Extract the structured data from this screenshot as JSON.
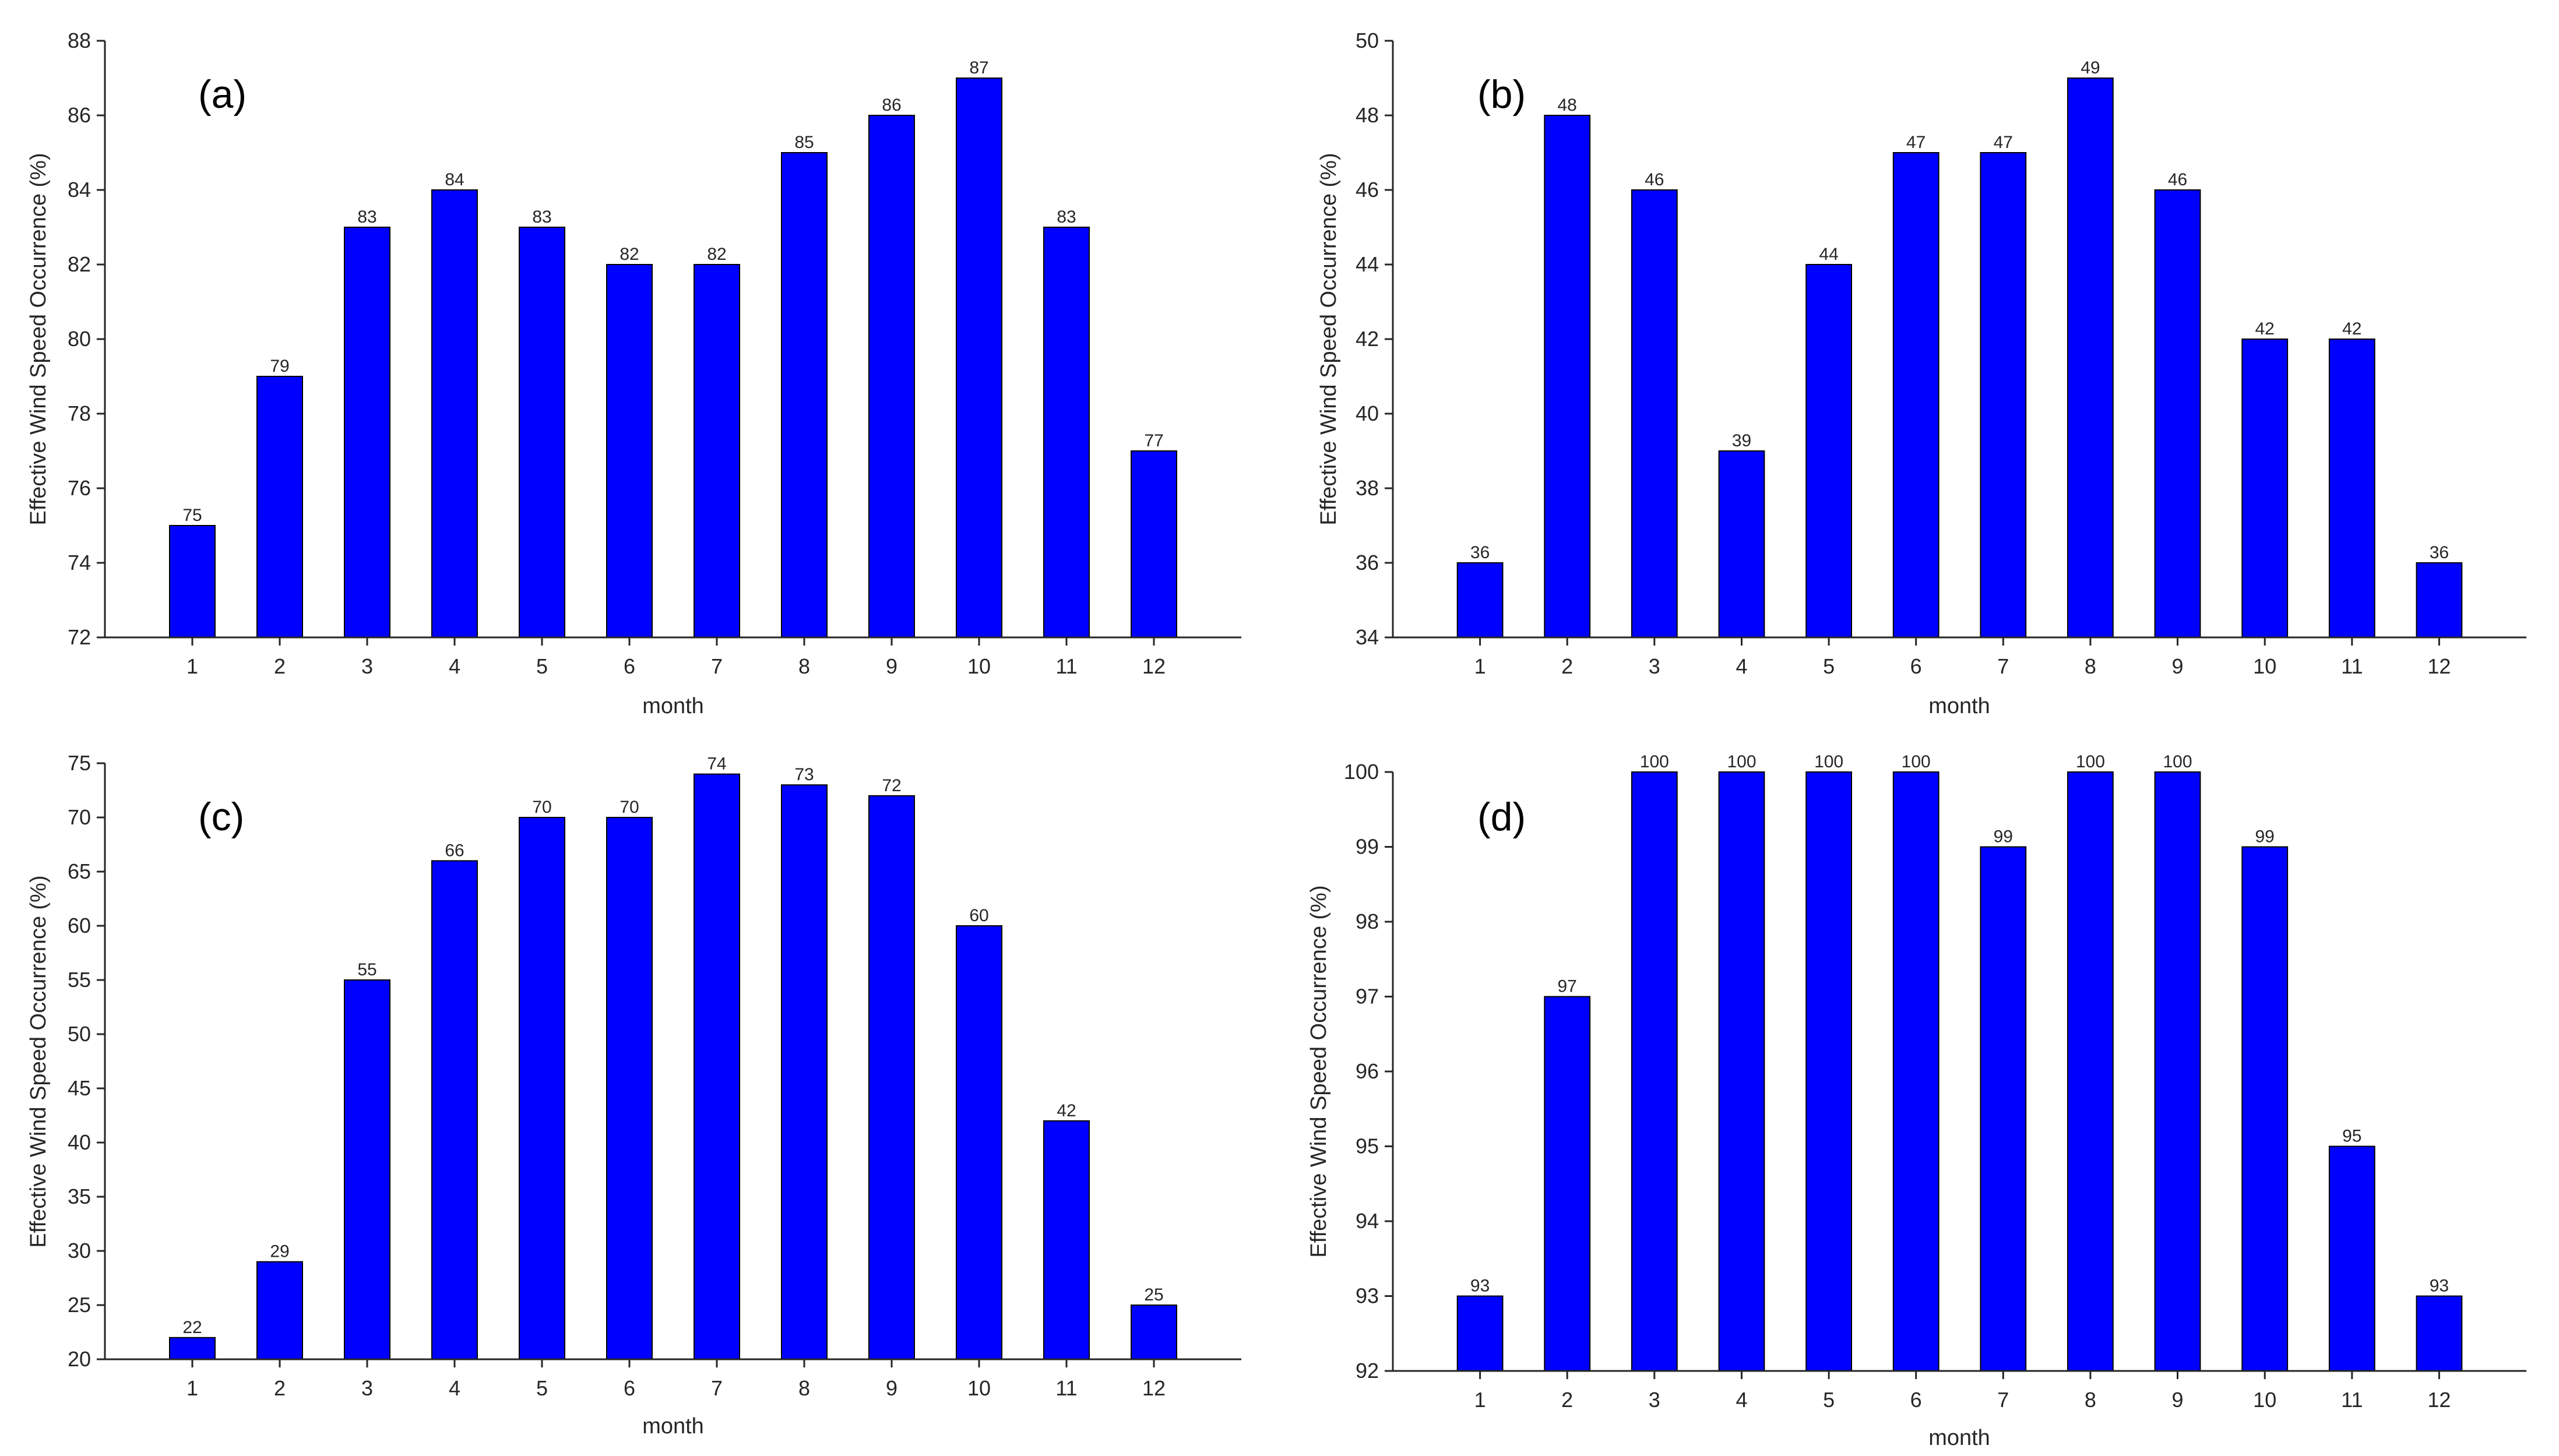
{
  "figure": {
    "bar_color": "#0000FF",
    "axis_color": "#262626",
    "background": "#FFFFFF"
  },
  "chart_data": [
    {
      "type": "bar",
      "panel_label": "(a)",
      "xlabel": "month",
      "ylabel": "Effective Wind Speed Occurrence (%)",
      "categories": [
        "1",
        "2",
        "3",
        "4",
        "5",
        "6",
        "7",
        "8",
        "9",
        "10",
        "11",
        "12"
      ],
      "values": [
        75,
        79,
        83,
        84,
        83,
        82,
        82,
        85,
        86,
        87,
        83,
        77
      ],
      "ylim": [
        72,
        88
      ],
      "yticks": [
        72,
        74,
        76,
        78,
        80,
        82,
        84,
        86,
        88
      ],
      "grid": false
    },
    {
      "type": "bar",
      "panel_label": "(b)",
      "xlabel": "month",
      "ylabel": "Effective Wind Speed Occurrence (%)",
      "categories": [
        "1",
        "2",
        "3",
        "4",
        "5",
        "6",
        "7",
        "8",
        "9",
        "10",
        "11",
        "12"
      ],
      "values": [
        36,
        48,
        46,
        39,
        44,
        47,
        47,
        49,
        46,
        42,
        42,
        36
      ],
      "ylim": [
        34,
        50
      ],
      "yticks": [
        34,
        36,
        38,
        40,
        42,
        44,
        46,
        48,
        50
      ],
      "grid": false
    },
    {
      "type": "bar",
      "panel_label": "(c)",
      "xlabel": "month",
      "ylabel": "Effective Wind Speed Occurrence (%)",
      "categories": [
        "1",
        "2",
        "3",
        "4",
        "5",
        "6",
        "7",
        "8",
        "9",
        "10",
        "11",
        "12"
      ],
      "values": [
        22,
        29,
        55,
        66,
        70,
        70,
        74,
        73,
        72,
        60,
        42,
        25
      ],
      "ylim": [
        20,
        75
      ],
      "yticks": [
        20,
        25,
        30,
        35,
        40,
        45,
        50,
        55,
        60,
        65,
        70,
        75
      ],
      "grid": false
    },
    {
      "type": "bar",
      "panel_label": "(d)",
      "xlabel": "month",
      "ylabel": "Effective Wind Speed Occurrence (%)",
      "categories": [
        "1",
        "2",
        "3",
        "4",
        "5",
        "6",
        "7",
        "8",
        "9",
        "10",
        "11",
        "12"
      ],
      "values": [
        93,
        97,
        100,
        100,
        100,
        100,
        99,
        100,
        100,
        99,
        95,
        93
      ],
      "ylim": [
        92,
        100
      ],
      "yticks": [
        92,
        93,
        94,
        95,
        96,
        97,
        98,
        99,
        100
      ],
      "grid": false
    }
  ]
}
